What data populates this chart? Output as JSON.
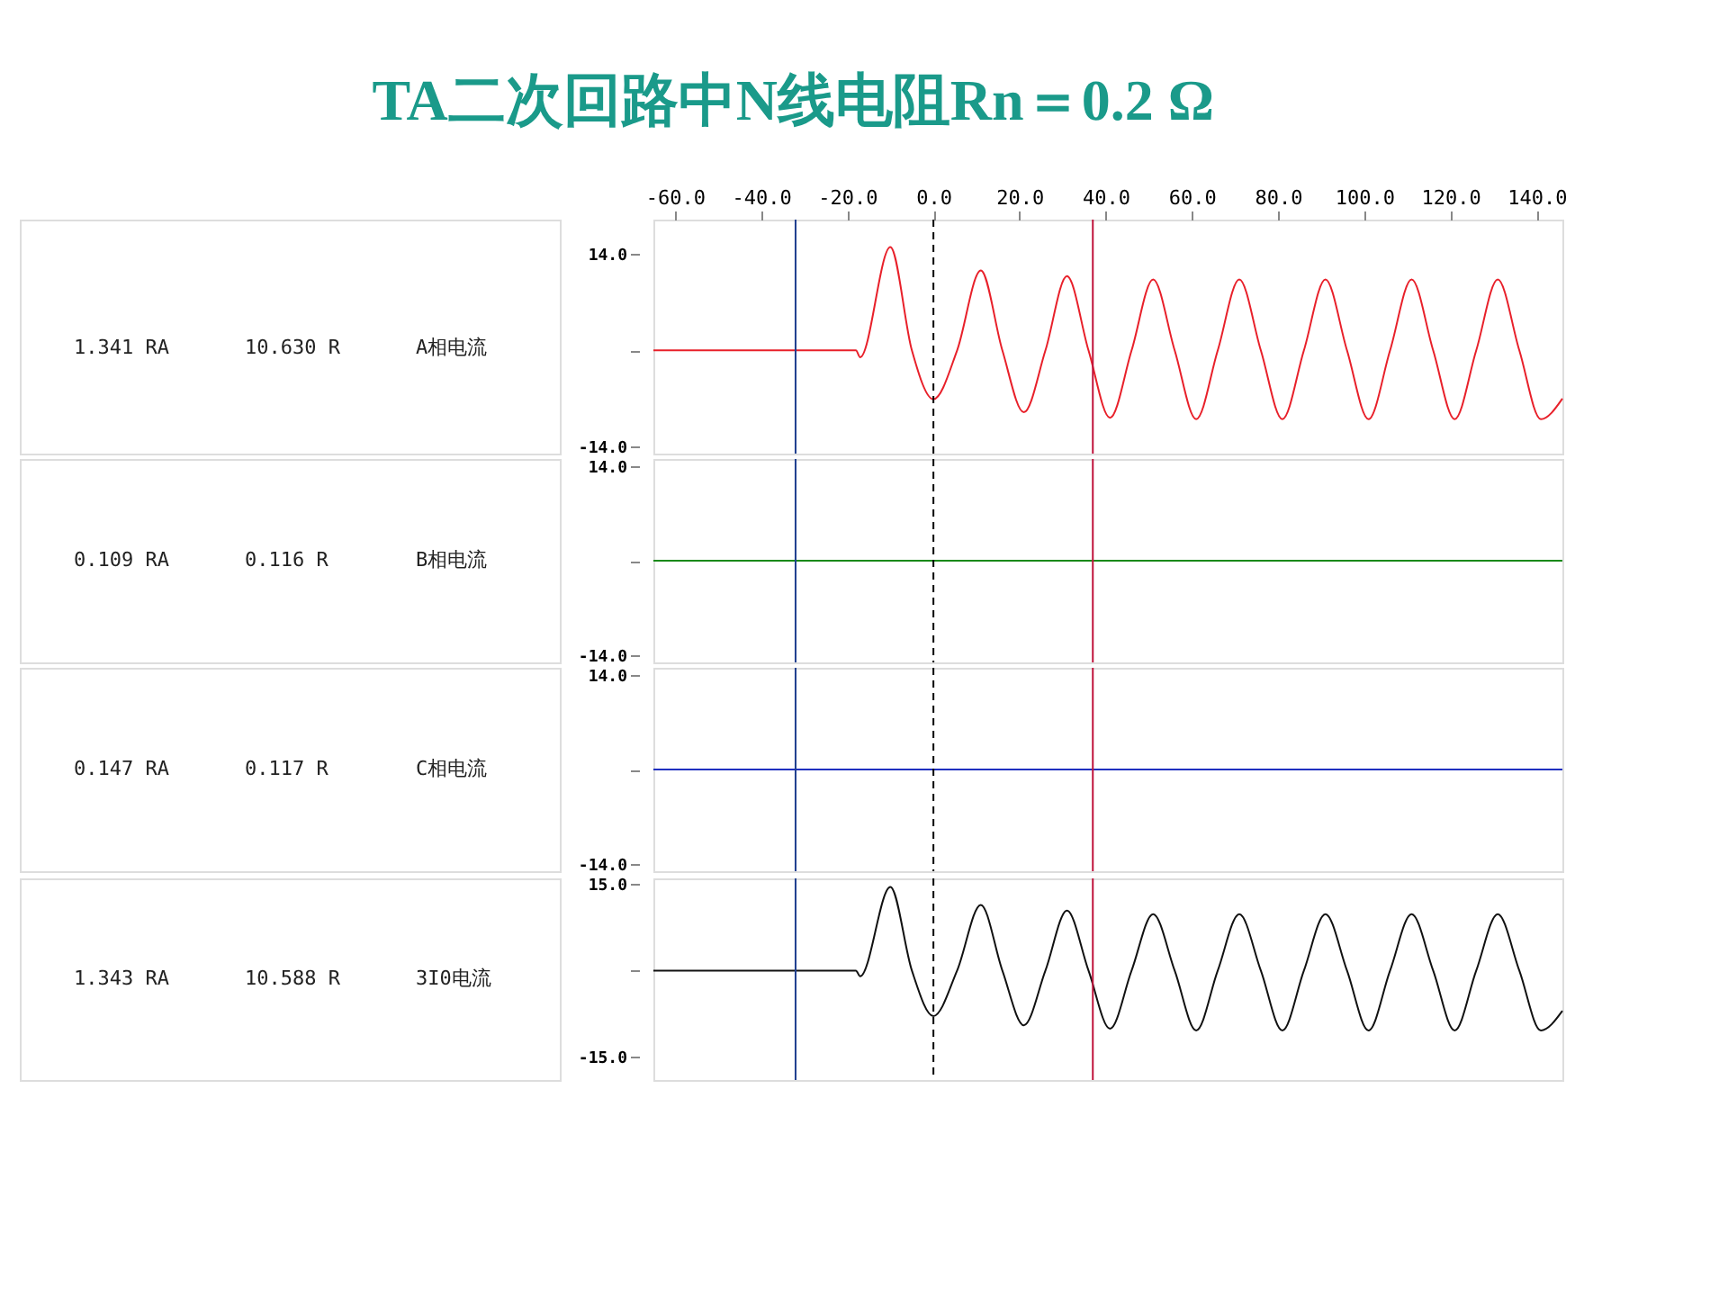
{
  "chart_data": [
    {
      "type": "line",
      "title": "TA二次回路中N线电阻Rn＝0.2 Ω",
      "annotations": [
        "1.341 RA",
        "10.630 R",
        "A相电流"
      ],
      "xlim": [
        -65,
        146
      ],
      "xticks": [
        {
          "value": -60,
          "label": "-60.0"
        },
        {
          "value": -40,
          "label": "-40.0"
        },
        {
          "value": -20,
          "label": "-20.0"
        },
        {
          "value": 0,
          "label": "0.0"
        },
        {
          "value": 20,
          "label": "20.0"
        },
        {
          "value": 40,
          "label": "40.0"
        },
        {
          "value": 60,
          "label": "60.0"
        },
        {
          "value": 80,
          "label": "80.0"
        },
        {
          "value": 100,
          "label": "100.0"
        },
        {
          "value": 120,
          "label": "120.0"
        },
        {
          "value": 140,
          "label": "140.0"
        }
      ],
      "ylim": [
        -15,
        19
      ],
      "yticks": [
        {
          "value": 14,
          "label": "14.0"
        },
        {
          "value": 0,
          "label": null
        },
        {
          "value": -14,
          "label": "-14.0"
        }
      ],
      "series": [
        {
          "color": "#e8202a",
          "x": [
            -65,
            -18,
            -17,
            -10,
            -5,
            0,
            5.5,
            11,
            16,
            21,
            26,
            31,
            36,
            41,
            46,
            51,
            56,
            61,
            66,
            71,
            76,
            81,
            86,
            91,
            96,
            101,
            106,
            111,
            116,
            121,
            126,
            131,
            136,
            141,
            146
          ],
          "values": [
            0,
            0,
            -1,
            15.0,
            0,
            -7.1,
            0,
            11.6,
            0,
            -9.0,
            0,
            10.8,
            0,
            -9.8,
            0,
            10.3,
            0,
            -10.0,
            0,
            10.3,
            0,
            -10.0,
            0,
            10.3,
            0,
            -10.0,
            0,
            10.3,
            0,
            -10.0,
            0,
            10.3,
            0,
            -10.0,
            -7
          ]
        }
      ],
      "ref_lines": [
        {
          "axis": "x",
          "value": -32,
          "color": "#1f3f8f"
        },
        {
          "axis": "x",
          "value": 0,
          "color": "#000000",
          "line_style": "dashed"
        },
        {
          "axis": "x",
          "value": 37,
          "color": "#c0143c"
        }
      ]
    },
    {
      "type": "line",
      "annotations": [
        "0.109 RA",
        "0.116 R",
        "B相电流"
      ],
      "xlim": [
        -65,
        146
      ],
      "tick_labels": "y",
      "ylim": [
        -15,
        15
      ],
      "yticks": [
        {
          "value": 14,
          "label": "14.0"
        },
        {
          "value": 0,
          "label": null
        },
        {
          "value": -14,
          "label": "-14.0"
        }
      ],
      "series": [
        {
          "color": "#1a8a1a",
          "x": [
            -65,
            146
          ],
          "values": [
            0,
            0
          ]
        }
      ],
      "ref_lines": [
        {
          "axis": "x",
          "value": -32,
          "color": "#1f3f8f"
        },
        {
          "axis": "x",
          "value": 0,
          "color": "#000000",
          "line_style": "dashed"
        },
        {
          "axis": "x",
          "value": 37,
          "color": "#c0143c"
        }
      ]
    },
    {
      "type": "line",
      "annotations": [
        "0.147 RA",
        "0.117 R",
        "C相电流"
      ],
      "xlim": [
        -65,
        146
      ],
      "tick_labels": "y",
      "ylim": [
        -15,
        15
      ],
      "yticks": [
        {
          "value": 14,
          "label": "14.0"
        },
        {
          "value": 0,
          "label": null
        },
        {
          "value": -14,
          "label": "-14.0"
        }
      ],
      "series": [
        {
          "color": "#2030c0",
          "x": [
            -65,
            146
          ],
          "values": [
            0,
            0
          ]
        }
      ],
      "ref_lines": [
        {
          "axis": "x",
          "value": -32,
          "color": "#1f3f8f"
        },
        {
          "axis": "x",
          "value": 0,
          "color": "#000000",
          "line_style": "dashed"
        },
        {
          "axis": "x",
          "value": 37,
          "color": "#c0143c"
        }
      ]
    },
    {
      "type": "line",
      "annotations": [
        "1.343 RA",
        "10.588 R",
        "3I0电流"
      ],
      "xlim": [
        -65,
        146
      ],
      "tick_labels": "y",
      "ylim": [
        -19,
        16
      ],
      "yticks": [
        {
          "value": 15,
          "label": "15.0"
        },
        {
          "value": 0,
          "label": null
        },
        {
          "value": -15,
          "label": "-15.0"
        }
      ],
      "series": [
        {
          "color": "#111111",
          "x": [
            -65,
            -18,
            -17,
            -10,
            -5,
            0,
            5.5,
            11,
            16,
            21,
            26,
            31,
            36,
            41,
            46,
            51,
            56,
            61,
            66,
            71,
            76,
            81,
            86,
            91,
            96,
            101,
            106,
            111,
            116,
            121,
            126,
            131,
            136,
            141,
            146
          ],
          "values": [
            0,
            0,
            -1,
            14.5,
            0,
            -7.9,
            0,
            11.4,
            0,
            -9.5,
            0,
            10.4,
            0,
            -10.1,
            0,
            9.8,
            0,
            -10.4,
            0,
            9.8,
            0,
            -10.4,
            0,
            9.8,
            0,
            -10.4,
            0,
            9.8,
            0,
            -10.4,
            0,
            9.8,
            0,
            -10.4,
            -7
          ]
        }
      ],
      "ref_lines": [
        {
          "axis": "x",
          "value": -32,
          "color": "#1f3f8f"
        },
        {
          "axis": "x",
          "value": 0,
          "color": "#000000",
          "line_style": "dashed"
        },
        {
          "axis": "x",
          "value": 37,
          "color": "#c0143c"
        }
      ]
    }
  ]
}
